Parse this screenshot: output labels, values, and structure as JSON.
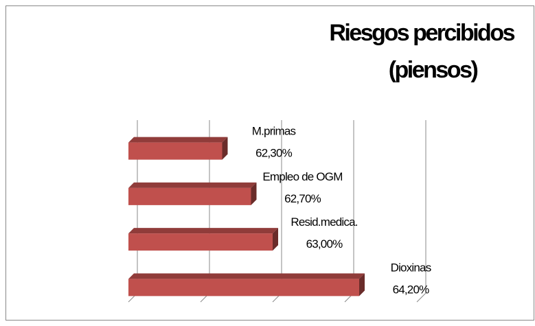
{
  "chart_data": {
    "type": "bar",
    "orientation": "horizontal",
    "title": [
      "Riesgos percibidos",
      "(piensos)"
    ],
    "categories": [
      "M.primas",
      "Empleo de OGM",
      "Resid.medica.",
      "Dioxinas"
    ],
    "values": [
      62.3,
      62.7,
      63.0,
      64.2
    ],
    "value_labels": [
      "62,30%",
      "62,70%",
      "63,00%",
      "64,20%"
    ],
    "color": "#c0504d",
    "xlim": [
      61,
      65
    ],
    "xticks": [
      61,
      62,
      63,
      64,
      65
    ],
    "grid": true
  }
}
